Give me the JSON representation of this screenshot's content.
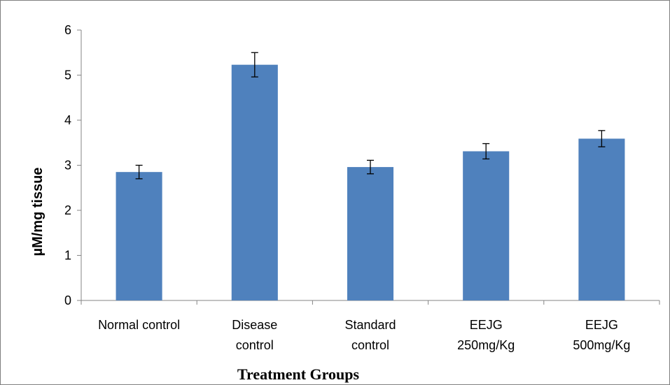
{
  "chart_data": {
    "type": "bar",
    "title": "",
    "xlabel": "Treatment Groups",
    "ylabel": "µM/mg tissue",
    "ylim": [
      0,
      6
    ],
    "yticks": [
      0,
      1,
      2,
      3,
      4,
      5,
      6
    ],
    "grid": false,
    "legend": "none",
    "bar_color": "#4f81bd",
    "categories": [
      [
        "Normal control"
      ],
      [
        "Disease",
        "control"
      ],
      [
        "Standard",
        "control"
      ],
      [
        "EEJG",
        "250mg/Kg"
      ],
      [
        "EEJG",
        "500mg/Kg"
      ]
    ],
    "values": [
      2.85,
      5.23,
      2.96,
      3.31,
      3.59
    ],
    "errors": [
      0.15,
      0.27,
      0.15,
      0.17,
      0.18
    ]
  }
}
